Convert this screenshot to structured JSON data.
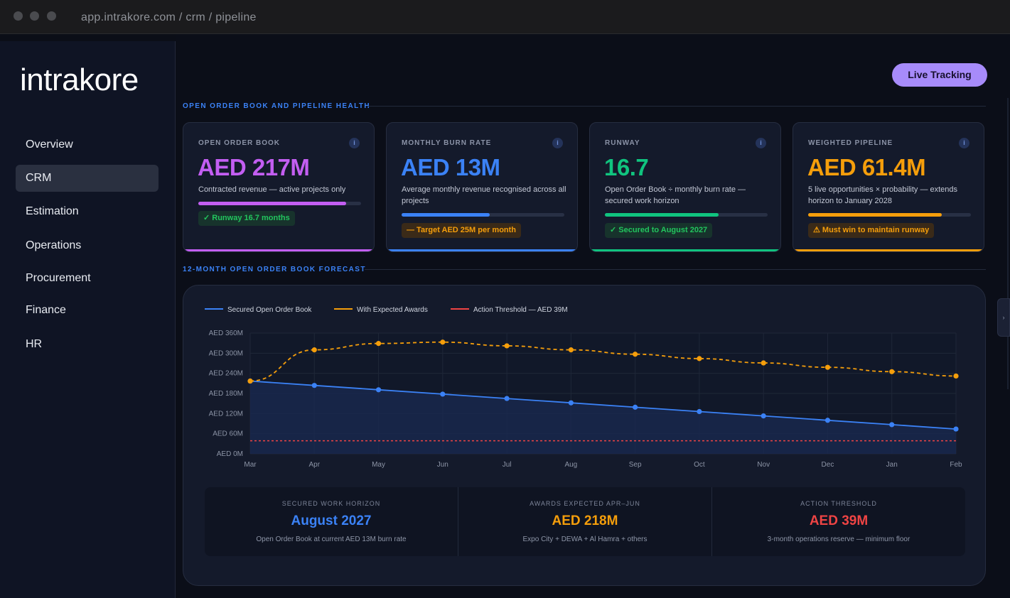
{
  "browser": {
    "url": "app.intrakore.com / crm / pipeline"
  },
  "sidebar": {
    "logo": "intrakore",
    "items": [
      {
        "label": "Overview",
        "active": false
      },
      {
        "label": "CRM",
        "active": true
      },
      {
        "label": "Estimation",
        "active": false
      },
      {
        "label": "Operations",
        "active": false
      },
      {
        "label": "Procurement",
        "active": false
      },
      {
        "label": "Finance",
        "active": false
      },
      {
        "label": "HR",
        "active": false
      }
    ]
  },
  "header": {
    "live_button": "Live Tracking"
  },
  "sections": {
    "health_title": "OPEN ORDER BOOK AND PIPELINE HEALTH",
    "forecast_title": "12-MONTH OPEN ORDER BOOK FORECAST"
  },
  "cards": [
    {
      "label": "OPEN ORDER BOOK",
      "value": "AED 217M",
      "desc": "Contracted revenue — active projects only",
      "badge": "✓ Runway 16.7 months",
      "progress": 0.91,
      "color": "#c35ef2",
      "badge_color": "#22c55e",
      "badge_bg": "#17332c"
    },
    {
      "label": "MONTHLY BURN RATE",
      "value": "AED 13M",
      "desc": "Average monthly revenue recognised across all projects",
      "badge": "— Target AED 25M per month",
      "progress": 0.54,
      "color": "#3b82f6",
      "badge_color": "#f59e0b",
      "badge_bg": "#3a2a18"
    },
    {
      "label": "RUNWAY",
      "value": "16.7",
      "desc": "Open Order Book ÷ monthly burn rate — secured work horizon",
      "badge": "✓ Secured to August 2027",
      "progress": 0.7,
      "color": "#10c47f",
      "badge_color": "#22c55e",
      "badge_bg": "#17332c"
    },
    {
      "label": "WEIGHTED PIPELINE",
      "value": "AED 61.4M",
      "desc": "5 live opportunities × probability — extends horizon to January 2028",
      "badge": "⚠ Must win to maintain runway",
      "progress": 0.82,
      "color": "#f59e0b",
      "badge_color": "#f59e0b",
      "badge_bg": "#3a2a18"
    }
  ],
  "chart_data": {
    "type": "line",
    "categories": [
      "Mar",
      "Apr",
      "May",
      "Jun",
      "Jul",
      "Aug",
      "Sep",
      "Oct",
      "Nov",
      "Dec",
      "Jan",
      "Feb"
    ],
    "y_ticks": [
      "AED 360M",
      "AED 300M",
      "AED 240M",
      "AED 180M",
      "AED 120M",
      "AED 60M",
      "AED 0M"
    ],
    "ylim": [
      0,
      360
    ],
    "grid": true,
    "legend_position": "top-left",
    "series": [
      {
        "name": "Secured Open Order Book",
        "color": "#3b82f6",
        "style": "solid",
        "fill": true,
        "values": [
          217,
          204,
          191,
          178,
          165,
          152,
          139,
          126,
          113,
          100,
          87,
          74
        ]
      },
      {
        "name": "With Expected Awards",
        "color": "#f59e0b",
        "style": "dashed",
        "fill": false,
        "values": [
          217,
          310,
          329,
          333,
          322,
          310,
          297,
          284,
          271,
          258,
          245,
          232
        ]
      },
      {
        "name": "Action Threshold — AED 39M",
        "color": "#ef4444",
        "style": "dotted",
        "fill": false,
        "values": [
          39,
          39,
          39,
          39,
          39,
          39,
          39,
          39,
          39,
          39,
          39,
          39
        ]
      }
    ]
  },
  "stats": [
    {
      "label": "SECURED WORK HORIZON",
      "value": "August 2027",
      "sub": "Open Order Book at current AED 13M burn rate",
      "color": "#3b82f6"
    },
    {
      "label": "AWARDS EXPECTED APR–JUN",
      "value": "AED 218M",
      "sub": "Expo City + DEWA + Al Hamra + others",
      "color": "#f59e0b"
    },
    {
      "label": "ACTION THRESHOLD",
      "value": "AED 39M",
      "sub": "3-month operations reserve — minimum floor",
      "color": "#ef4444"
    }
  ],
  "edge_tab": "›"
}
